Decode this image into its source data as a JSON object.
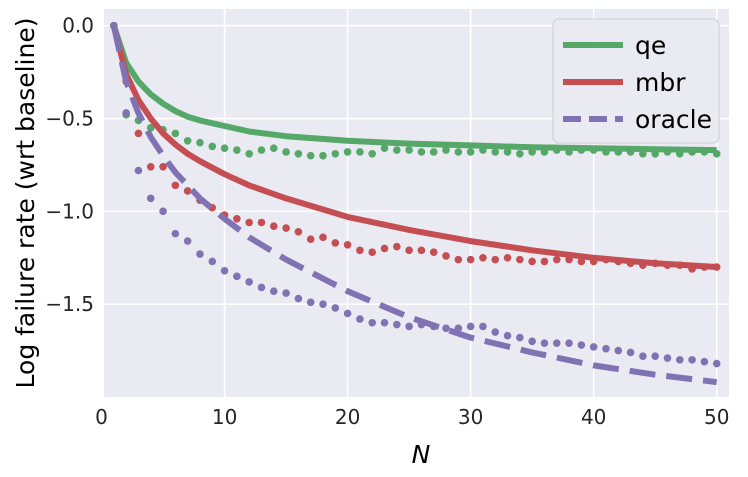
{
  "chart_data": {
    "type": "line",
    "title": "",
    "xlabel": "N",
    "ylabel": "Log failure rate (wrt baseline)",
    "xlim": [
      0.2,
      51.0
    ],
    "ylim": [
      -2.0,
      0.09
    ],
    "xticks": [
      0,
      10,
      20,
      30,
      40,
      50
    ],
    "yticks": [
      0.0,
      -0.5,
      -1.0,
      -1.5
    ],
    "xtick_labels": [
      "0",
      "10",
      "20",
      "30",
      "40",
      "50"
    ],
    "ytick_labels": [
      "0.0",
      "−0.5",
      "−1.0",
      "−1.5"
    ],
    "grid": true,
    "legend": {
      "position": "top-right",
      "entries": [
        "qe",
        "mbr",
        "oracle"
      ]
    },
    "colors": {
      "qe": "#55a868",
      "mbr": "#c44e52",
      "oracle": "#8172b3",
      "background": "#eaeaf2",
      "grid": "#ffffff"
    },
    "fitted_series": [
      {
        "name": "qe",
        "style": "solid",
        "points": [
          [
            1,
            0.0
          ],
          [
            2,
            -0.2
          ],
          [
            3,
            -0.3
          ],
          [
            4,
            -0.37
          ],
          [
            5,
            -0.42
          ],
          [
            6,
            -0.46
          ],
          [
            7,
            -0.49
          ],
          [
            8,
            -0.51
          ],
          [
            10,
            -0.54
          ],
          [
            12,
            -0.57
          ],
          [
            15,
            -0.595
          ],
          [
            20,
            -0.62
          ],
          [
            25,
            -0.635
          ],
          [
            30,
            -0.645
          ],
          [
            35,
            -0.655
          ],
          [
            40,
            -0.66
          ],
          [
            45,
            -0.665
          ],
          [
            50,
            -0.67
          ]
        ]
      },
      {
        "name": "mbr",
        "style": "solid",
        "points": [
          [
            1,
            0.0
          ],
          [
            2,
            -0.26
          ],
          [
            3,
            -0.4
          ],
          [
            4,
            -0.5
          ],
          [
            5,
            -0.58
          ],
          [
            6,
            -0.64
          ],
          [
            7,
            -0.69
          ],
          [
            8,
            -0.73
          ],
          [
            10,
            -0.8
          ],
          [
            12,
            -0.86
          ],
          [
            15,
            -0.93
          ],
          [
            20,
            -1.03
          ],
          [
            25,
            -1.1
          ],
          [
            30,
            -1.16
          ],
          [
            35,
            -1.21
          ],
          [
            40,
            -1.25
          ],
          [
            45,
            -1.28
          ],
          [
            50,
            -1.3
          ]
        ]
      },
      {
        "name": "oracle",
        "style": "dashed",
        "points": [
          [
            1,
            0.0
          ],
          [
            2,
            -0.3
          ],
          [
            3,
            -0.47
          ],
          [
            4,
            -0.6
          ],
          [
            5,
            -0.7
          ],
          [
            6,
            -0.79
          ],
          [
            7,
            -0.86
          ],
          [
            8,
            -0.93
          ],
          [
            10,
            -1.04
          ],
          [
            12,
            -1.14
          ],
          [
            15,
            -1.26
          ],
          [
            20,
            -1.43
          ],
          [
            25,
            -1.57
          ],
          [
            30,
            -1.68
          ],
          [
            35,
            -1.76
          ],
          [
            40,
            -1.83
          ],
          [
            45,
            -1.88
          ],
          [
            50,
            -1.92
          ]
        ]
      }
    ],
    "observed_series": [
      {
        "name": "qe",
        "style": "dotted",
        "x": [
          1,
          2,
          3,
          4,
          5,
          6,
          7,
          8,
          9,
          10,
          11,
          12,
          13,
          14,
          15,
          16,
          17,
          18,
          19,
          20,
          21,
          22,
          23,
          24,
          25,
          26,
          27,
          28,
          29,
          30,
          31,
          32,
          33,
          34,
          35,
          36,
          37,
          38,
          39,
          40,
          41,
          42,
          43,
          44,
          45,
          46,
          47,
          48,
          49,
          50
        ],
        "y": [
          0.0,
          -0.48,
          -0.51,
          -0.55,
          -0.56,
          -0.58,
          -0.62,
          -0.63,
          -0.65,
          -0.66,
          -0.67,
          -0.69,
          -0.67,
          -0.66,
          -0.68,
          -0.69,
          -0.7,
          -0.7,
          -0.69,
          -0.68,
          -0.68,
          -0.69,
          -0.66,
          -0.67,
          -0.67,
          -0.68,
          -0.68,
          -0.67,
          -0.68,
          -0.68,
          -0.67,
          -0.68,
          -0.68,
          -0.69,
          -0.68,
          -0.68,
          -0.67,
          -0.68,
          -0.67,
          -0.67,
          -0.68,
          -0.68,
          -0.68,
          -0.69,
          -0.69,
          -0.68,
          -0.69,
          -0.68,
          -0.68,
          -0.69
        ]
      },
      {
        "name": "mbr",
        "style": "dotted",
        "x": [
          1,
          2,
          3,
          4,
          5,
          6,
          7,
          8,
          9,
          10,
          11,
          12,
          13,
          14,
          15,
          16,
          17,
          18,
          19,
          20,
          21,
          22,
          23,
          24,
          25,
          26,
          27,
          28,
          29,
          30,
          31,
          32,
          33,
          34,
          35,
          36,
          37,
          38,
          39,
          40,
          41,
          42,
          43,
          44,
          45,
          46,
          47,
          48,
          49,
          50
        ],
        "y": [
          0.0,
          -0.3,
          -0.58,
          -0.76,
          -0.76,
          -0.86,
          -0.89,
          -0.94,
          -0.98,
          -1.02,
          -1.04,
          -1.06,
          -1.06,
          -1.08,
          -1.09,
          -1.11,
          -1.15,
          -1.14,
          -1.17,
          -1.18,
          -1.21,
          -1.22,
          -1.2,
          -1.19,
          -1.21,
          -1.21,
          -1.22,
          -1.24,
          -1.26,
          -1.26,
          -1.25,
          -1.26,
          -1.25,
          -1.26,
          -1.27,
          -1.27,
          -1.26,
          -1.26,
          -1.27,
          -1.27,
          -1.26,
          -1.27,
          -1.28,
          -1.29,
          -1.28,
          -1.29,
          -1.29,
          -1.31,
          -1.3,
          -1.3
        ]
      },
      {
        "name": "oracle",
        "style": "dotted",
        "x": [
          1,
          2,
          3,
          4,
          5,
          6,
          7,
          8,
          9,
          10,
          11,
          12,
          13,
          14,
          15,
          16,
          17,
          18,
          19,
          20,
          21,
          22,
          23,
          24,
          25,
          26,
          27,
          28,
          29,
          30,
          31,
          32,
          33,
          34,
          35,
          36,
          37,
          38,
          39,
          40,
          41,
          42,
          43,
          44,
          45,
          46,
          47,
          48,
          49,
          50
        ],
        "y": [
          0.0,
          -0.47,
          -0.78,
          -0.93,
          -1.0,
          -1.12,
          -1.16,
          -1.23,
          -1.27,
          -1.32,
          -1.35,
          -1.38,
          -1.41,
          -1.43,
          -1.44,
          -1.47,
          -1.49,
          -1.5,
          -1.52,
          -1.55,
          -1.58,
          -1.6,
          -1.6,
          -1.61,
          -1.62,
          -1.61,
          -1.62,
          -1.63,
          -1.63,
          -1.62,
          -1.62,
          -1.65,
          -1.67,
          -1.68,
          -1.7,
          -1.71,
          -1.71,
          -1.71,
          -1.72,
          -1.73,
          -1.74,
          -1.75,
          -1.76,
          -1.78,
          -1.78,
          -1.79,
          -1.8,
          -1.8,
          -1.81,
          -1.82
        ]
      }
    ]
  }
}
